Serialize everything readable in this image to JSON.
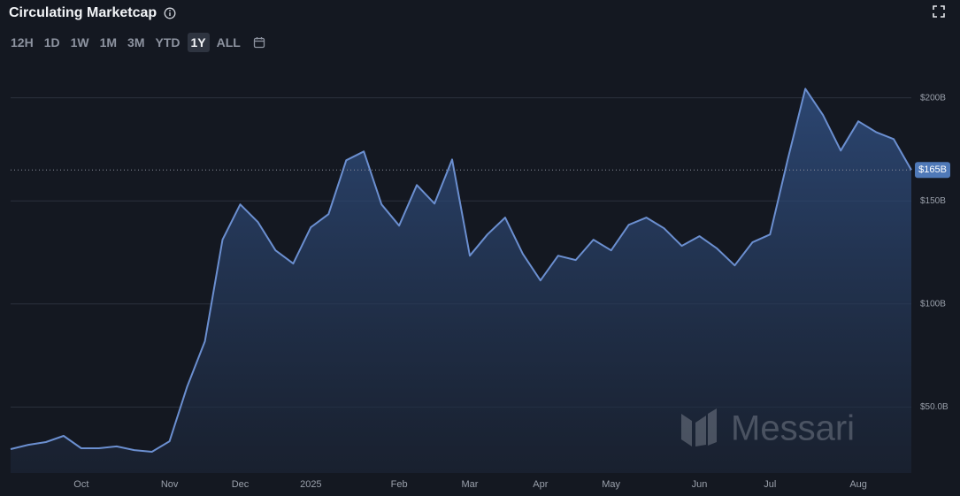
{
  "chart_data": {
    "type": "area",
    "title": "Circulating Marketcap",
    "ranges": [
      "12H",
      "1D",
      "1W",
      "1M",
      "3M",
      "YTD",
      "1Y",
      "ALL"
    ],
    "active_range": "1Y",
    "watermark": "Messari",
    "categories": [
      null,
      null,
      null,
      null,
      "Oct",
      null,
      null,
      null,
      null,
      "Nov",
      null,
      null,
      null,
      "Dec",
      null,
      null,
      null,
      "2025",
      null,
      null,
      null,
      null,
      "Feb",
      null,
      null,
      null,
      "Mar",
      null,
      null,
      null,
      "Apr",
      null,
      null,
      null,
      "May",
      null,
      null,
      null,
      null,
      "Jun",
      null,
      null,
      null,
      "Jul",
      null,
      null,
      null,
      null,
      "Aug",
      null,
      null,
      null
    ],
    "series": [
      {
        "color": "#6b8fd0",
        "values": [
          29.6,
          31.7,
          33.0,
          36.0,
          30.0,
          30.0,
          30.9,
          29.1,
          28.3,
          33.4,
          60.0,
          81.9,
          131.2,
          148.3,
          139.7,
          126.0,
          119.6,
          137.2,
          143.6,
          169.7,
          174.0,
          148.3,
          138.0,
          157.7,
          148.7,
          170.1,
          123.4,
          133.7,
          141.9,
          124.3,
          111.4,
          123.4,
          121.3,
          131.2,
          126.0,
          138.4,
          141.9,
          136.7,
          128.2,
          132.9,
          126.9,
          118.7,
          129.9,
          133.7,
          170.1,
          204.4,
          191.6,
          174.4,
          188.6,
          183.4,
          180.0,
          165
        ],
        "value_labels": [
          null,
          null,
          null,
          null,
          null,
          null,
          null,
          null,
          null,
          null,
          null,
          null,
          null,
          null,
          null,
          null,
          null,
          null,
          null,
          null,
          null,
          null,
          null,
          null,
          null,
          null,
          null,
          null,
          null,
          null,
          null,
          null,
          null,
          null,
          null,
          null,
          null,
          null,
          null,
          null,
          null,
          null,
          null,
          null,
          null,
          null,
          null,
          null,
          null,
          null,
          null,
          "$165B"
        ]
      }
    ],
    "ylim": [
      18,
      211
    ],
    "yticks": [
      {
        "value": 50,
        "label": "$50.0B"
      },
      {
        "value": 100,
        "label": "$100B"
      },
      {
        "value": 150,
        "label": "$150B"
      },
      {
        "value": 200,
        "label": "$200B"
      }
    ],
    "grid": true
  }
}
